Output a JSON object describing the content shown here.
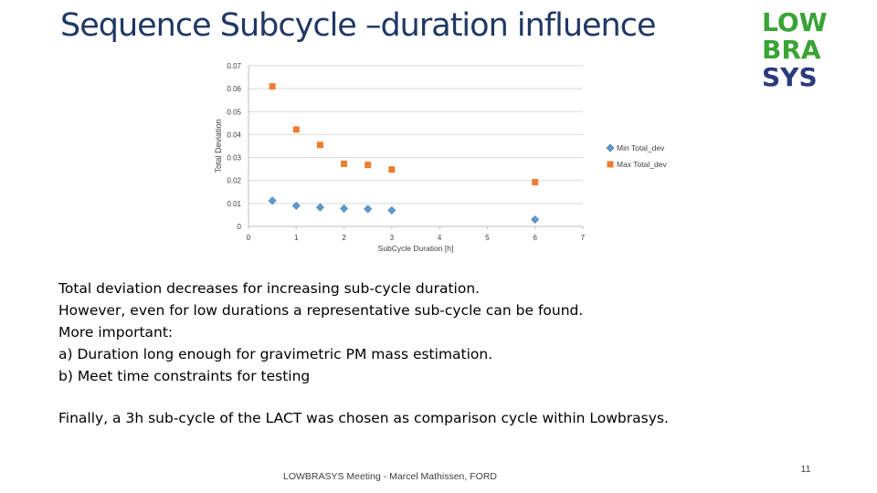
{
  "slide": {
    "title": "Sequence Subcycle –duration influence",
    "logo": {
      "lines": [
        "LOW",
        "BRA",
        "SYS"
      ],
      "colors": {
        "green": "#3aa336",
        "navy": "#2b3a7a"
      }
    },
    "body_lines": [
      "Total deviation decreases for increasing sub-cycle duration.",
      "However, even for low durations a representative sub-cycle can be found.",
      "More important:",
      "a)  Duration long enough for gravimetric PM mass estimation.",
      "b)  Meet time constraints for testing"
    ],
    "final_line": "Finally, a 3h sub-cycle of the LACT was chosen as comparison cycle within Lowbrasys.",
    "footer": "LOWBRASYS Meeting - Marcel Mathissen, FORD",
    "page_number": "11",
    "title_color": "#1f3864"
  },
  "chart_data": {
    "type": "scatter",
    "title": "",
    "xlabel": "SubCycle Duration [h]",
    "ylabel": "Total Deviation",
    "xlim": [
      0,
      7
    ],
    "ylim": [
      0,
      0.07
    ],
    "xticks": [
      "0",
      "1",
      "2",
      "3",
      "4",
      "5",
      "6",
      "7"
    ],
    "yticks": [
      "0",
      "0.01",
      "0.02",
      "0.03",
      "0.04",
      "0.05",
      "0.06",
      "0.07"
    ],
    "grid": "horizontal",
    "legend_position": "right",
    "series": [
      {
        "name": "Min Total_dev",
        "marker": "diamond",
        "color": "#5b9bd5",
        "points": [
          [
            0.5,
            0.0112
          ],
          [
            1.0,
            0.009
          ],
          [
            1.5,
            0.0083
          ],
          [
            2.0,
            0.0078
          ],
          [
            2.5,
            0.0076
          ],
          [
            3.0,
            0.007
          ],
          [
            6.0,
            0.003
          ]
        ]
      },
      {
        "name": "Max Total_dev",
        "marker": "square",
        "color": "#ed7d31",
        "points": [
          [
            0.5,
            0.061
          ],
          [
            1.0,
            0.0422
          ],
          [
            1.5,
            0.0355
          ],
          [
            2.0,
            0.0273
          ],
          [
            2.5,
            0.0268
          ],
          [
            3.0,
            0.0248
          ],
          [
            6.0,
            0.0193
          ]
        ]
      }
    ]
  }
}
